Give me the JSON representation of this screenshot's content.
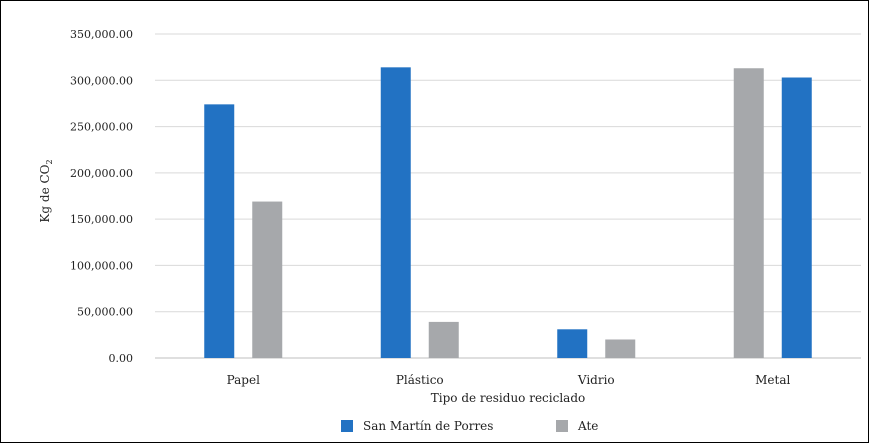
{
  "chart_data": {
    "type": "bar",
    "categories": [
      "Papel",
      "Plástico",
      "Vidrio",
      "Metal"
    ],
    "x_ticks": [
      "Papel",
      "Plástico",
      "Vidrio",
      "Metal"
    ],
    "y_ticks": [
      "0.00",
      "50,000.00",
      "100,000.00",
      "150,000.00",
      "200,000.00",
      "250,000.00",
      "300,000.00",
      "350,000.00"
    ],
    "xlabel": "Tipo de residuo reciclado",
    "ylabel": "Kg de CO",
    "ylabel_sub": "2",
    "ylim": [
      0,
      350000
    ],
    "grid": true,
    "legend_position": "bottom",
    "series": [
      {
        "name": "San Martín de Porres",
        "values": [
          274000,
          314000,
          31000,
          303000
        ],
        "color": "#2272C3"
      },
      {
        "name": "Ate",
        "values": [
          169000,
          39000,
          20000,
          313000
        ],
        "color": "#A6A8AB"
      }
    ],
    "bar_order": [
      [
        "San Martín de Porres",
        "Ate"
      ],
      [
        "San Martín de Porres",
        "Ate"
      ],
      [
        "San Martín de Porres",
        "Ate"
      ],
      [
        "Ate",
        "San Martín de Porres"
      ]
    ]
  }
}
